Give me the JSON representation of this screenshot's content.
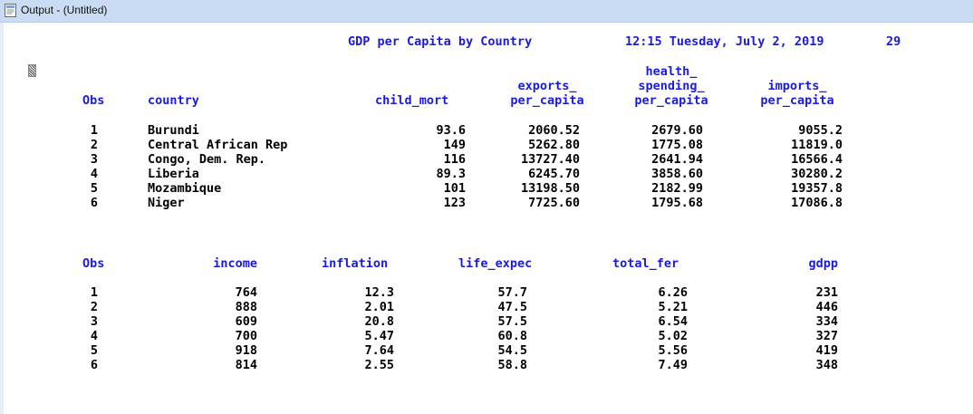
{
  "window": {
    "title": "Output - (Untitled)"
  },
  "report": {
    "title": "GDP per Capita by Country",
    "timestamp": "12:15 Tuesday, July 2, 2019",
    "page_number": "29"
  },
  "table1": {
    "headers": {
      "obs": "Obs",
      "country": "country",
      "child_mort": "child_mort",
      "exports": [
        "exports_",
        "per_capita"
      ],
      "health": [
        "health_",
        "spending_",
        "per_capita"
      ],
      "imports": [
        "imports_",
        "per_capita"
      ]
    },
    "rows": [
      {
        "obs": "1",
        "country": "Burundi",
        "child_mort": "93.6",
        "exports": "2060.52",
        "health": "2679.60",
        "imports": "9055.2"
      },
      {
        "obs": "2",
        "country": "Central African Rep",
        "child_mort": "149",
        "exports": "5262.80",
        "health": "1775.08",
        "imports": "11819.0"
      },
      {
        "obs": "3",
        "country": "Congo, Dem. Rep.",
        "child_mort": "116",
        "exports": "13727.40",
        "health": "2641.94",
        "imports": "16566.4"
      },
      {
        "obs": "4",
        "country": "Liberia",
        "child_mort": "89.3",
        "exports": "6245.70",
        "health": "3858.60",
        "imports": "30280.2"
      },
      {
        "obs": "5",
        "country": "Mozambique",
        "child_mort": "101",
        "exports": "13198.50",
        "health": "2182.99",
        "imports": "19357.8"
      },
      {
        "obs": "6",
        "country": "Niger",
        "child_mort": "123",
        "exports": "7725.60",
        "health": "1795.68",
        "imports": "17086.8"
      }
    ]
  },
  "table2": {
    "headers": {
      "obs": "Obs",
      "income": "income",
      "inflation": "inflation",
      "life_expec": "life_expec",
      "total_fer": "total_fer",
      "gdpp": "gdpp"
    },
    "rows": [
      {
        "obs": "1",
        "income": "764",
        "inflation": "12.3",
        "life_expec": "57.7",
        "total_fer": "6.26",
        "gdpp": "231"
      },
      {
        "obs": "2",
        "income": "888",
        "inflation": "2.01",
        "life_expec": "47.5",
        "total_fer": "5.21",
        "gdpp": "446"
      },
      {
        "obs": "3",
        "income": "609",
        "inflation": "20.8",
        "life_expec": "57.5",
        "total_fer": "6.54",
        "gdpp": "334"
      },
      {
        "obs": "4",
        "income": "700",
        "inflation": "5.47",
        "life_expec": "60.8",
        "total_fer": "5.02",
        "gdpp": "327"
      },
      {
        "obs": "5",
        "income": "918",
        "inflation": "7.64",
        "life_expec": "54.5",
        "total_fer": "5.56",
        "gdpp": "419"
      },
      {
        "obs": "6",
        "income": "814",
        "inflation": "2.55",
        "life_expec": "58.8",
        "total_fer": "7.49",
        "gdpp": "348"
      }
    ]
  }
}
